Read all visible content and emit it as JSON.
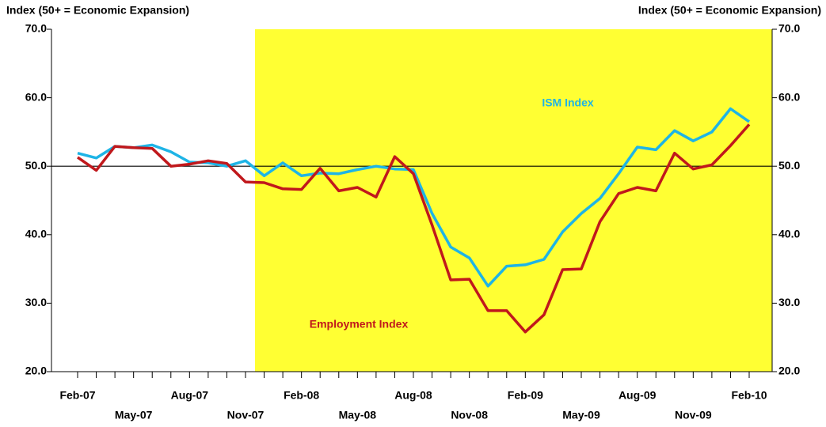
{
  "chart_data": {
    "type": "line",
    "y_label": "Index (50+ = Economic Expansion)",
    "y2_label": "Index (50+ = Economic Expansion)",
    "categories": [
      "Feb-07",
      null,
      null,
      "May-07",
      null,
      null,
      "Aug-07",
      null,
      null,
      "Nov-07",
      null,
      null,
      "Feb-08",
      null,
      null,
      "May-08",
      null,
      null,
      "Aug-08",
      null,
      null,
      "Nov-08",
      null,
      null,
      "Feb-09",
      null,
      null,
      "May-09",
      null,
      null,
      "Aug-09",
      null,
      null,
      "Nov-09",
      null,
      null,
      "Feb-10"
    ],
    "series": [
      {
        "name": "ISM Index",
        "color": "#1eb4e6",
        "values": [
          51.9,
          51.2,
          52.9,
          52.7,
          53.1,
          52.1,
          50.6,
          50.5,
          50.0,
          50.8,
          48.6,
          50.5,
          48.6,
          49.0,
          48.9,
          49.5,
          50.0,
          49.6,
          49.5,
          43.1,
          38.2,
          36.6,
          32.5,
          35.4,
          35.6,
          36.4,
          40.4,
          43.1,
          45.3,
          48.9,
          52.8,
          52.4,
          55.2,
          53.7,
          55.0,
          58.4,
          56.5
        ]
      },
      {
        "name": "Employment Index",
        "color": "#c0181c",
        "values": [
          51.3,
          49.4,
          52.9,
          52.7,
          52.6,
          50.0,
          50.3,
          50.8,
          50.4,
          47.7,
          47.6,
          46.7,
          46.6,
          49.7,
          46.4,
          46.9,
          45.5,
          51.4,
          48.9,
          41.4,
          33.4,
          33.5,
          28.9,
          28.9,
          25.8,
          28.3,
          34.9,
          35.0,
          41.9,
          46.0,
          46.9,
          46.4,
          51.9,
          49.6,
          50.2,
          53.0,
          56.1
        ]
      }
    ],
    "ylim": [
      20,
      70
    ],
    "yticks": [
      {
        "value": 20,
        "label": "20.0"
      },
      {
        "value": 30,
        "label": "30.0"
      },
      {
        "value": 40,
        "label": "40.0"
      },
      {
        "value": 50,
        "label": "50.0"
      },
      {
        "value": 60,
        "label": "60.0"
      },
      {
        "value": 70,
        "label": "70.0"
      }
    ],
    "y2lim": [
      20,
      70
    ],
    "y2ticks": [
      {
        "value": 20,
        "label": "20.0"
      },
      {
        "value": 30,
        "label": "30.0"
      },
      {
        "value": 40,
        "label": "40.0"
      },
      {
        "value": 50,
        "label": "50.0"
      },
      {
        "value": 60,
        "label": "60.0"
      },
      {
        "value": 70,
        "label": "70.0"
      }
    ],
    "reference_line": 50,
    "grid": false
  }
}
